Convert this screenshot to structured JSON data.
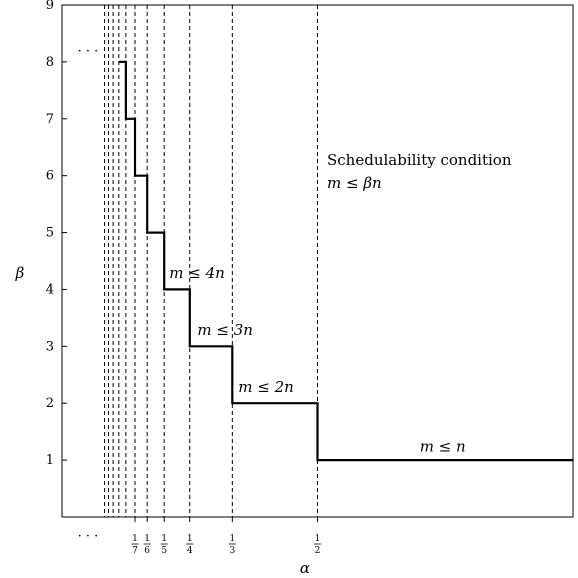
{
  "chart_data": {
    "type": "line",
    "xlabel": "α",
    "ylabel": "β",
    "xlim": [
      0,
      1
    ],
    "ylim": [
      0,
      9
    ],
    "y_ticks": [
      1,
      2,
      3,
      4,
      5,
      6,
      7,
      8,
      9
    ],
    "x_ticks": [
      {
        "value": 0.142857,
        "num": "1",
        "den": "7"
      },
      {
        "value": 0.166667,
        "num": "1",
        "den": "6"
      },
      {
        "value": 0.2,
        "num": "1",
        "den": "5"
      },
      {
        "value": 0.25,
        "num": "1",
        "den": "4"
      },
      {
        "value": 0.333333,
        "num": "1",
        "den": "3"
      },
      {
        "value": 0.5,
        "num": "1",
        "den": "2"
      }
    ],
    "dashed_lines_x": [
      0.083333,
      0.090909,
      0.1,
      0.111111,
      0.125,
      0.142857,
      0.166667,
      0.2,
      0.25,
      0.333333,
      0.5,
      1.0
    ],
    "series": [
      {
        "x": [
          0.111111,
          0.125,
          0.125,
          0.142857,
          0.142857,
          0.166667,
          0.166667,
          0.2,
          0.2,
          0.25,
          0.25,
          0.333333,
          0.333333,
          0.5,
          0.5,
          1.0
        ],
        "y": [
          8,
          8,
          7,
          7,
          6,
          6,
          5,
          5,
          4,
          4,
          3,
          3,
          2,
          2,
          1,
          1
        ]
      }
    ],
    "annotations": [
      {
        "text": "m ≤ 4n",
        "x": 0.21,
        "y": 4.2
      },
      {
        "text": "m ≤ 3n",
        "x": 0.265,
        "y": 3.2
      },
      {
        "text": "m ≤ 2n",
        "x": 0.345,
        "y": 2.2
      },
      {
        "text": "m ≤ n",
        "x": 0.7,
        "y": 1.15
      }
    ],
    "condition_title": "Schedulability condition",
    "condition_formula": "m ≤ βn",
    "ellipsis_top": "· · ·",
    "ellipsis_bottom": "· · ·",
    "grid": false
  }
}
